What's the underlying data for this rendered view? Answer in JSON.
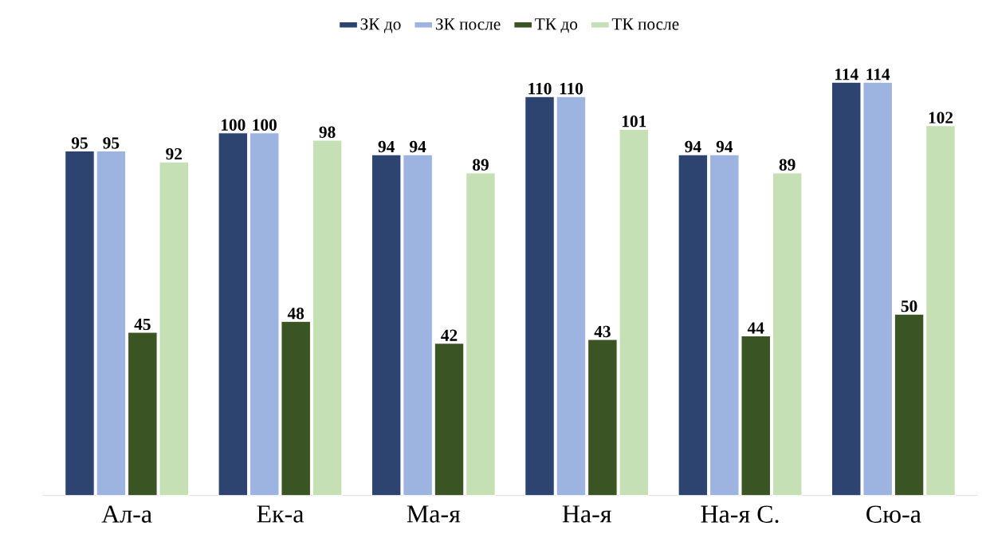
{
  "chart_data": {
    "type": "bar",
    "categories": [
      "Ал-а",
      "Ек-а",
      "Ма-я",
      "На-я",
      "На-я С.",
      "Сю-а"
    ],
    "series": [
      {
        "name": "ЗК до",
        "color": "#2e4470",
        "values": [
          95,
          100,
          94,
          110,
          94,
          114
        ]
      },
      {
        "name": "ЗК после",
        "color": "#9db3e0",
        "values": [
          95,
          100,
          94,
          110,
          94,
          114
        ]
      },
      {
        "name": "ТК до",
        "color": "#3a5423",
        "values": [
          45,
          48,
          42,
          43,
          44,
          50
        ]
      },
      {
        "name": "ТК после",
        "color": "#c5e0b4",
        "values": [
          92,
          98,
          89,
          101,
          89,
          102
        ]
      }
    ],
    "data_labels": true,
    "legend": "top"
  }
}
